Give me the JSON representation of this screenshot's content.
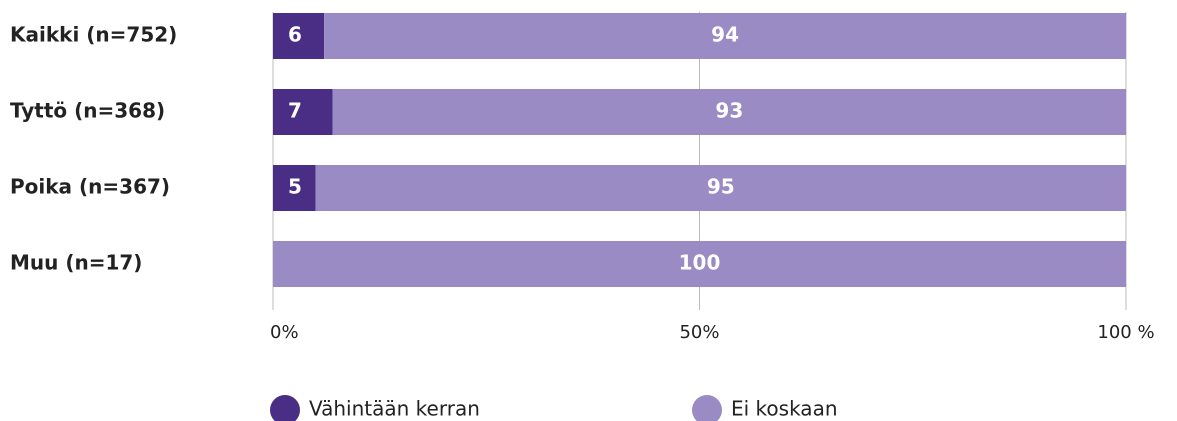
{
  "chart_data": {
    "type": "stacked_barh",
    "categories": [
      "Kaikki (n=752)",
      "Tyttö (n=368)",
      "Poika (n=367)",
      "Muu (n=17)"
    ],
    "series": [
      {
        "name": "Vähintään kerran",
        "color": "#4a2d84",
        "values": [
          6,
          7,
          5,
          0
        ]
      },
      {
        "name": "Ei koskaan",
        "color": "#9b8bc4",
        "values": [
          94,
          93,
          95,
          100
        ]
      }
    ],
    "xlim": [
      0,
      100
    ],
    "xticks": [
      {
        "value": 0,
        "label": "0%"
      },
      {
        "value": 50,
        "label": "50%"
      },
      {
        "value": 100,
        "label": "100 %"
      }
    ],
    "grid": true,
    "legend": "bottom"
  }
}
